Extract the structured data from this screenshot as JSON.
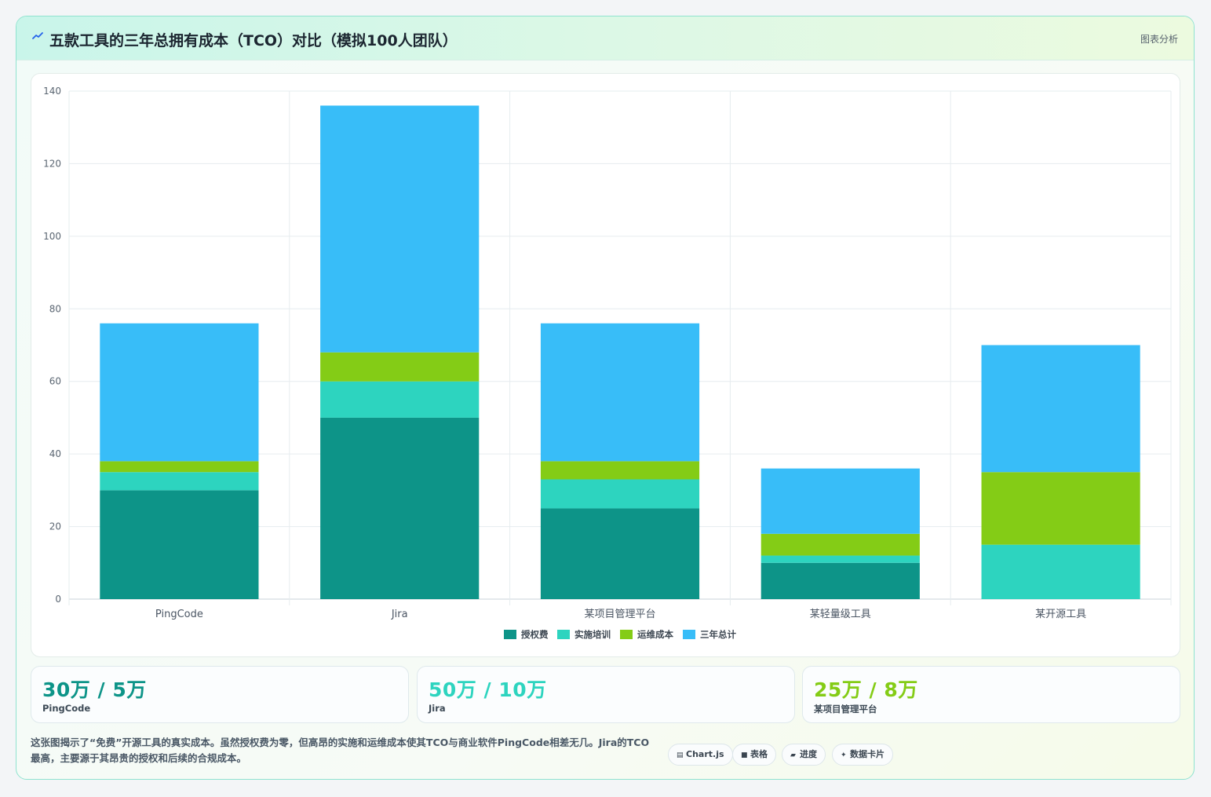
{
  "header": {
    "title": "五款工具的三年总拥有成本（TCO）对比（模拟100人团队）",
    "tag": "图表分析"
  },
  "chart_data": {
    "type": "bar",
    "stacked": true,
    "title": "",
    "xlabel": "",
    "ylabel": "",
    "categories": [
      "PingCode",
      "Jira",
      "某项目管理平台",
      "某轻量级工具",
      "某开源工具"
    ],
    "ylim": [
      0,
      140
    ],
    "yticks": [
      0,
      20,
      40,
      60,
      80,
      100,
      120,
      140
    ],
    "grid": true,
    "legend_position": "bottom",
    "series": [
      {
        "name": "授权费",
        "color": "#0d9488",
        "values": [
          30,
          50,
          25,
          10,
          0
        ]
      },
      {
        "name": "实施培训",
        "color": "#2dd4bf",
        "values": [
          5,
          10,
          8,
          2,
          15
        ]
      },
      {
        "name": "运维成本",
        "color": "#84cc16",
        "values": [
          3,
          8,
          5,
          6,
          20
        ]
      },
      {
        "name": "三年总计",
        "color": "#38bdf8",
        "values": [
          38,
          68,
          38,
          18,
          35
        ]
      }
    ]
  },
  "kpis": [
    {
      "value": "30万 / 5万",
      "label": "PingCode",
      "color": "#0d9488"
    },
    {
      "value": "50万 / 10万",
      "label": "Jira",
      "color": "#2dd4bf"
    },
    {
      "value": "25万 / 8万",
      "label": "某项目管理平台",
      "color": "#84cc16"
    }
  ],
  "note": "这张图揭示了“免费”开源工具的真实成本。虽然授权费为零，但高昂的实施和运维成本使其TCO与商业软件PingCode相差无几。Jira的TCO最高，主要源于其昂贵的授权和后续的合规成本。",
  "chips": [
    {
      "icon": "chart-icon",
      "glyph": "▤",
      "label": "Chart.js"
    },
    {
      "icon": "table-icon",
      "glyph": "■",
      "label": "表格"
    },
    {
      "icon": "progress-icon",
      "glyph": "▰",
      "label": "进度"
    },
    {
      "icon": "sparkle-icon",
      "glyph": "✦",
      "label": "数据卡片"
    }
  ]
}
